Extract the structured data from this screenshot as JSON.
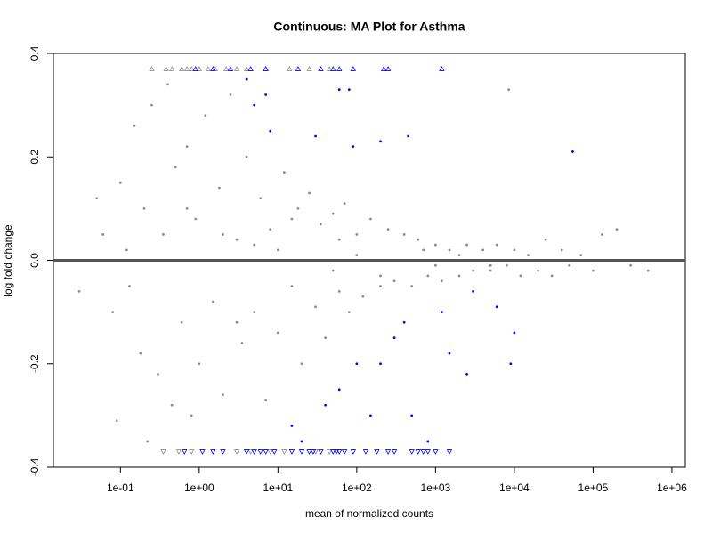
{
  "chart_data": {
    "type": "scatter",
    "title": "Continuous: MA Plot for Asthma",
    "x_label": "mean of normalized counts",
    "y_label": "log fold change",
    "x_scale": "log",
    "xlim": [
      0.0141,
      1480000
    ],
    "ylim": [
      -0.4,
      0.4
    ],
    "xticks": [
      {
        "value": 0.1,
        "label": "1e-01"
      },
      {
        "value": 1,
        "label": "1e+00"
      },
      {
        "value": 10,
        "label": "1e+01"
      },
      {
        "value": 100,
        "label": "1e+02"
      },
      {
        "value": 1000,
        "label": "1e+03"
      },
      {
        "value": 10000,
        "label": "1e+04"
      },
      {
        "value": 100000,
        "label": "1e+05"
      },
      {
        "value": 1000000,
        "label": "1e+06"
      }
    ],
    "yticks": [
      -0.4,
      -0.2,
      {
        "value": 0,
        "label": "0.0"
      },
      0.2,
      0.4
    ],
    "hline": {
      "value": 0,
      "color": "#555555"
    },
    "series": [
      {
        "color": "#8c8c8c",
        "marker": "circle",
        "x": [
          0.03,
          0.05,
          0.06,
          0.08,
          0.09,
          0.1,
          0.12,
          0.13,
          0.15,
          0.18,
          0.2,
          0.22,
          0.25,
          0.3,
          0.35,
          0.4,
          0.45,
          0.5,
          0.6,
          0.7,
          0.8,
          0.9,
          1,
          1.2,
          1.5,
          1.8,
          2,
          2.5,
          3,
          3.5,
          4,
          5,
          6,
          7,
          8,
          10,
          12,
          15,
          18,
          20,
          25,
          30,
          35,
          40,
          50,
          60,
          70,
          80,
          100,
          120,
          150,
          200,
          250,
          300,
          400,
          500,
          600,
          800,
          1000,
          1200,
          1500,
          2000,
          2500,
          3000,
          4000,
          5000,
          6000,
          8000,
          10000,
          12000,
          15000,
          20000,
          25000,
          30000,
          40000,
          50000,
          70000,
          100000,
          130000,
          200000,
          300000,
          500000,
          0.5,
          2,
          5,
          10,
          20,
          50,
          100,
          300,
          1000,
          3000,
          10000,
          30000,
          8500,
          0.7,
          3,
          15,
          60,
          200,
          700,
          2000,
          5000
        ],
        "values": [
          -0.06,
          0.12,
          0.05,
          -0.1,
          -0.31,
          0.15,
          0.02,
          -0.05,
          0.26,
          -0.18,
          0.1,
          -0.35,
          0.3,
          -0.22,
          0.05,
          0.34,
          -0.28,
          0.18,
          -0.12,
          0.22,
          -0.3,
          0.08,
          -0.2,
          0.28,
          -0.08,
          0.14,
          -0.26,
          0.32,
          0.04,
          -0.16,
          0.2,
          -0.1,
          0.12,
          -0.27,
          0.06,
          -0.14,
          0.17,
          -0.05,
          0.1,
          -0.2,
          0.13,
          -0.09,
          0.07,
          -0.15,
          0.09,
          -0.06,
          0.11,
          -0.1,
          0.05,
          -0.07,
          0.08,
          -0.05,
          0.06,
          -0.04,
          0.05,
          -0.05,
          0.04,
          -0.03,
          0.03,
          -0.04,
          0.02,
          -0.03,
          0.03,
          -0.02,
          0.02,
          -0.02,
          0.03,
          -0.01,
          0.02,
          -0.03,
          0.01,
          -0.02,
          0.04,
          -0.03,
          0.02,
          -0.01,
          0.01,
          -0.02,
          0.05,
          0.06,
          -0.01,
          -0.02,
          0,
          0.05,
          0.03,
          0.02,
          0,
          -0.02,
          0.01,
          0,
          -0.01,
          0,
          0,
          0,
          0.33,
          0.1,
          -0.12,
          0.08,
          0.04,
          -0.03,
          0.02,
          0.01,
          -0.01
        ]
      },
      {
        "color": "#0000ff",
        "marker": "circle",
        "x": [
          4,
          5,
          7,
          8,
          60,
          80,
          90,
          200,
          450,
          55000,
          30,
          100,
          200,
          300,
          40,
          60,
          15,
          20,
          500,
          800,
          9000,
          1500,
          1200,
          2500,
          3000,
          6000,
          10000,
          400,
          150
        ],
        "values": [
          0.35,
          0.3,
          0.32,
          0.25,
          0.33,
          0.33,
          0.22,
          0.23,
          0.24,
          0.21,
          0.24,
          -0.2,
          -0.2,
          -0.15,
          -0.28,
          -0.25,
          -0.32,
          -0.35,
          -0.3,
          -0.35,
          -0.2,
          -0.18,
          -0.1,
          -0.22,
          -0.06,
          -0.09,
          -0.14,
          -0.12,
          -0.3
        ]
      },
      {
        "color": "#8c8c8c",
        "marker": "triangle-up",
        "x": [
          0.25,
          0.38,
          0.45,
          0.6,
          0.7,
          0.8,
          1,
          1.3,
          1.6,
          2.2,
          3,
          4,
          7,
          14,
          25,
          45
        ],
        "values": [
          0.37,
          0.37,
          0.37,
          0.37,
          0.37,
          0.37,
          0.37,
          0.37,
          0.37,
          0.37,
          0.37,
          0.37,
          0.37,
          0.37,
          0.37,
          0.37
        ]
      },
      {
        "color": "#0000ff",
        "marker": "triangle-up",
        "x": [
          0.9,
          1.5,
          2.5,
          4.5,
          7,
          18,
          35,
          50,
          60,
          90,
          220,
          250,
          1200
        ],
        "values": [
          0.37,
          0.37,
          0.37,
          0.37,
          0.37,
          0.37,
          0.37,
          0.37,
          0.37,
          0.37,
          0.37,
          0.37,
          0.37
        ]
      },
      {
        "color": "#8c8c8c",
        "marker": "triangle-down",
        "x": [
          0.35,
          0.55,
          0.8,
          3,
          4.5,
          8,
          12,
          30,
          45
        ],
        "values": [
          -0.37,
          -0.37,
          -0.37,
          -0.37,
          -0.37,
          -0.37,
          -0.37,
          -0.37,
          -0.37
        ]
      },
      {
        "color": "#0000ff",
        "marker": "triangle-down",
        "x": [
          0.65,
          1.1,
          1.5,
          2,
          4,
          5,
          6,
          7,
          9,
          15,
          20,
          25,
          28,
          35,
          50,
          55,
          60,
          70,
          90,
          130,
          180,
          250,
          300,
          500,
          600,
          700,
          800,
          1000,
          1500
        ],
        "values": [
          -0.37,
          -0.37,
          -0.37,
          -0.37,
          -0.37,
          -0.37,
          -0.37,
          -0.37,
          -0.37,
          -0.37,
          -0.37,
          -0.37,
          -0.37,
          -0.37,
          -0.37,
          -0.37,
          -0.37,
          -0.37,
          -0.37,
          -0.37,
          -0.37,
          -0.37,
          -0.37,
          -0.37,
          -0.37,
          -0.37,
          -0.37,
          -0.37,
          -0.37
        ]
      }
    ]
  }
}
